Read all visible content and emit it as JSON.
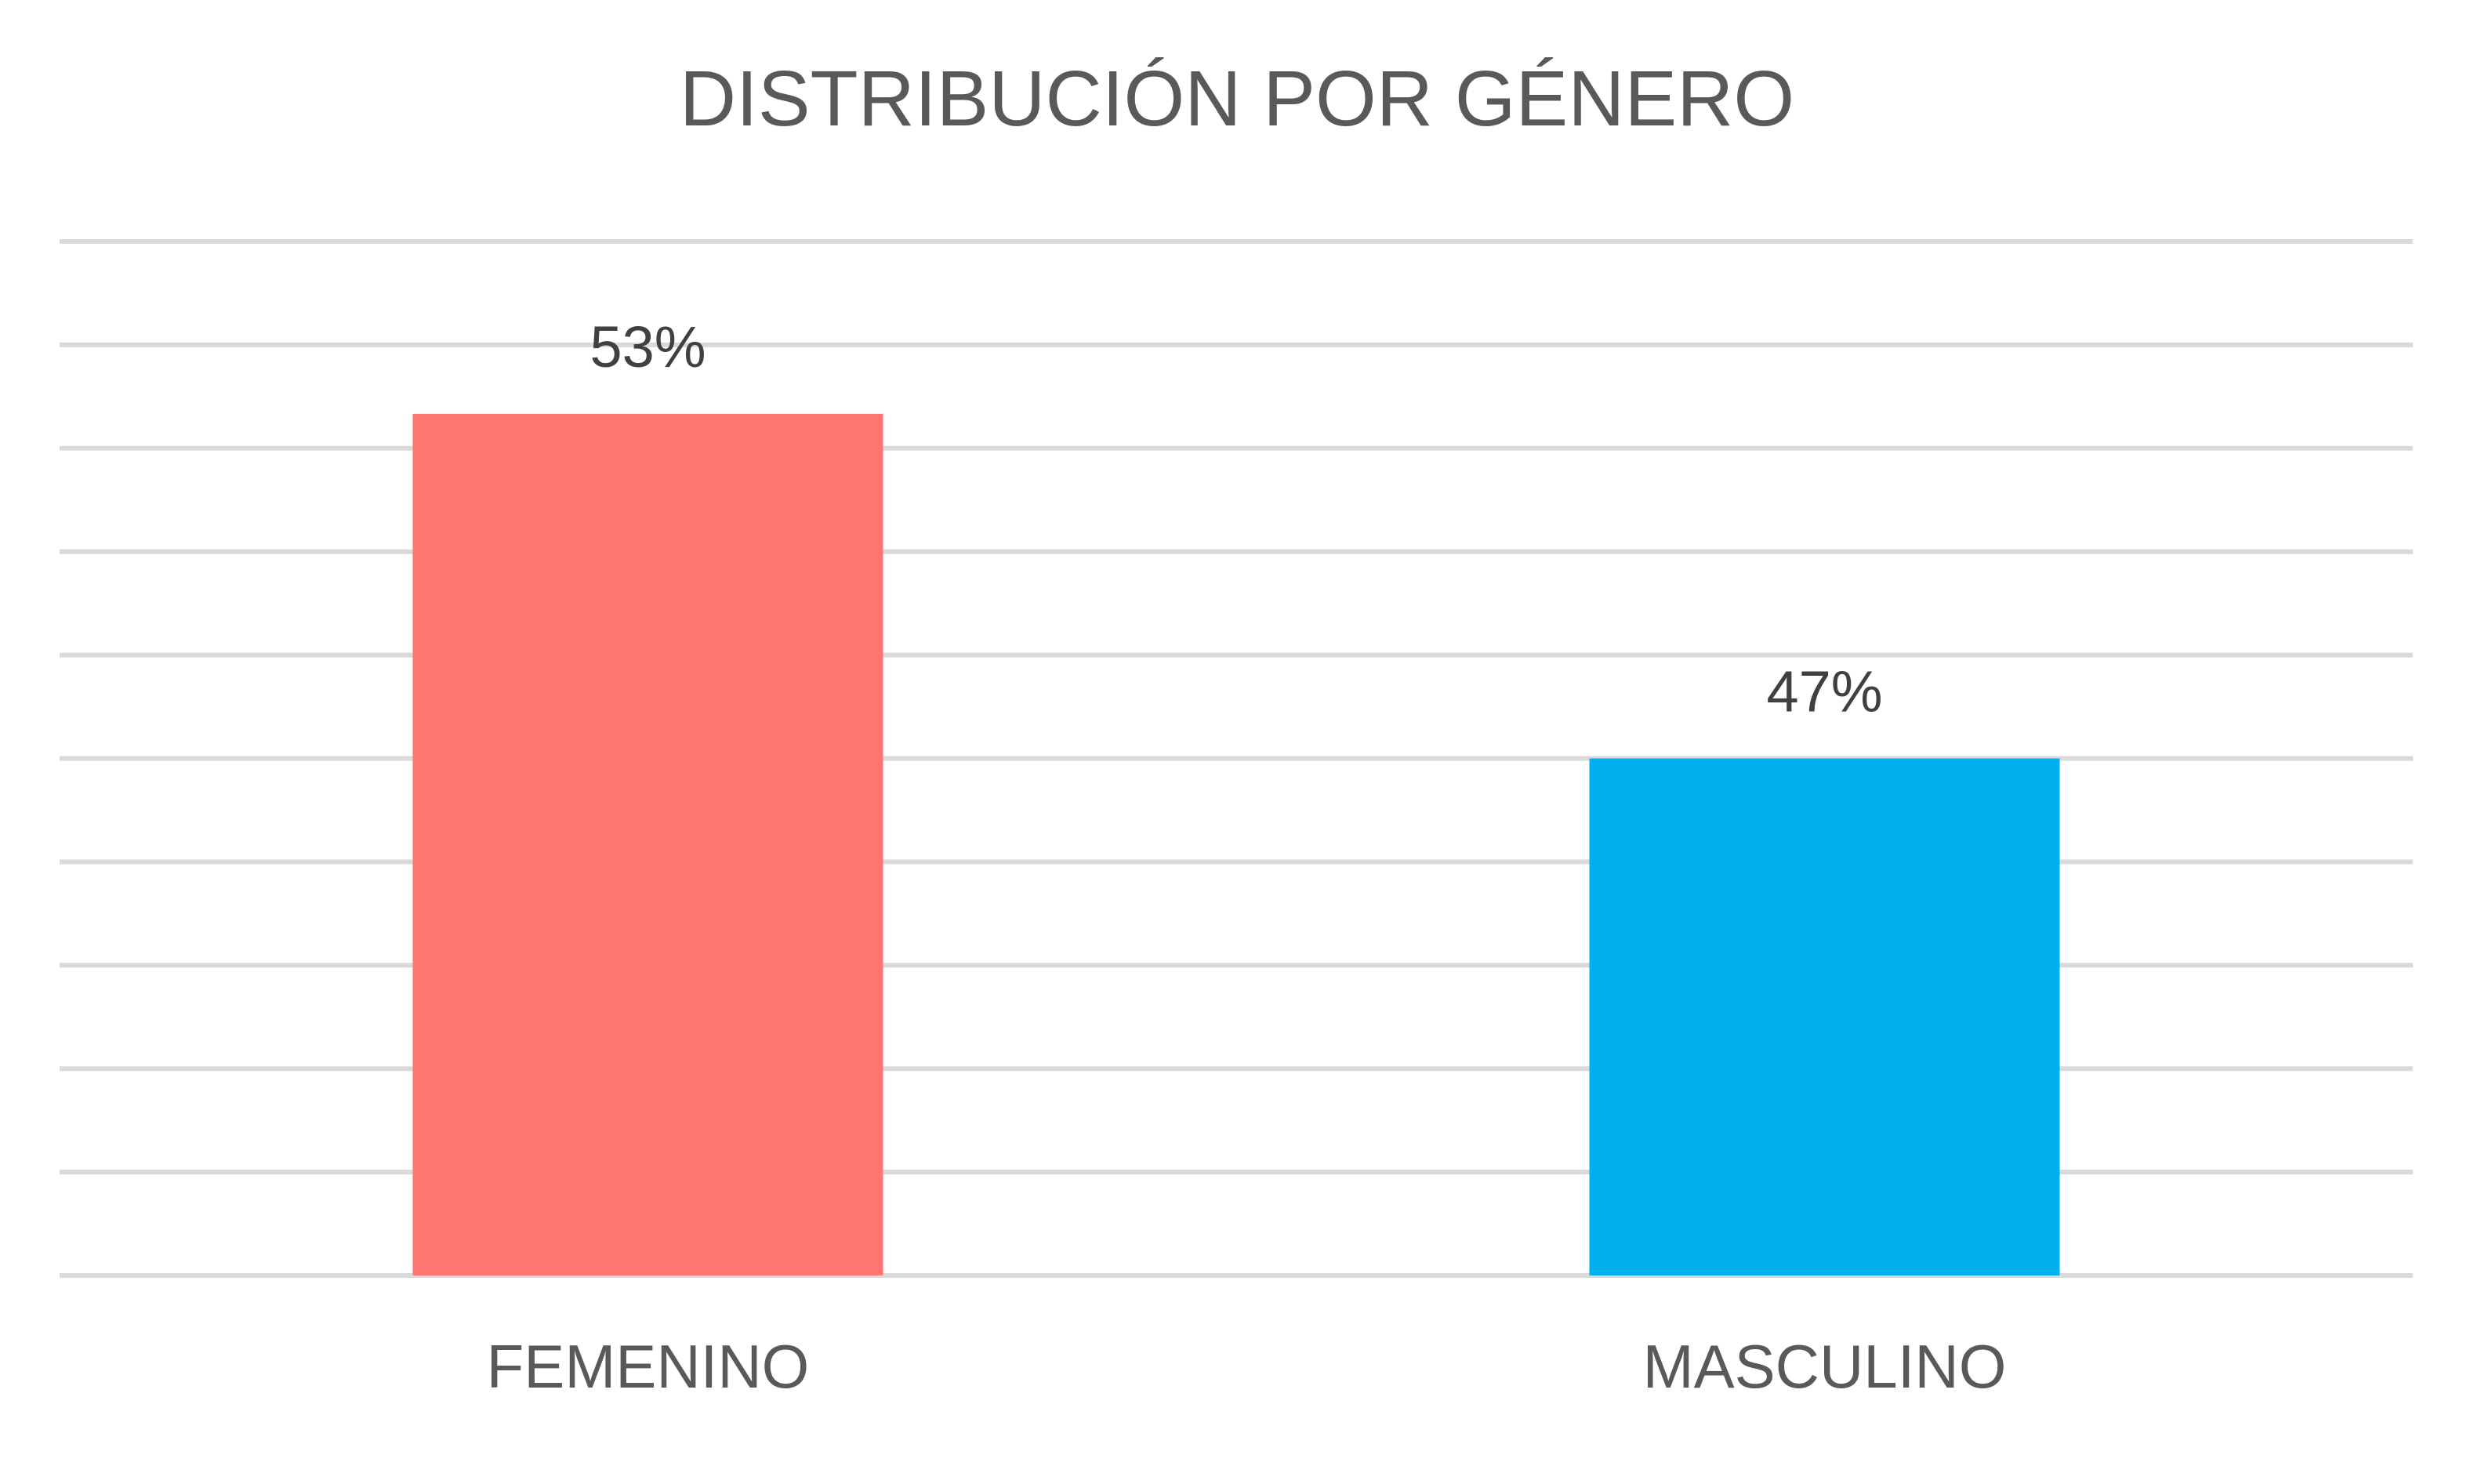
{
  "chart_data": {
    "type": "bar",
    "title": "DISTRIBUCIÓN POR GÉNERO",
    "categories": [
      "FEMENINO",
      "MASCULINO"
    ],
    "values": [
      53,
      47
    ],
    "value_labels": [
      "53%",
      "47%"
    ],
    "colors": [
      "#FF7570",
      "#00B0EF"
    ],
    "ylim": [
      38,
      56
    ],
    "grid": true,
    "gridline_count": 10,
    "legend": "none"
  }
}
